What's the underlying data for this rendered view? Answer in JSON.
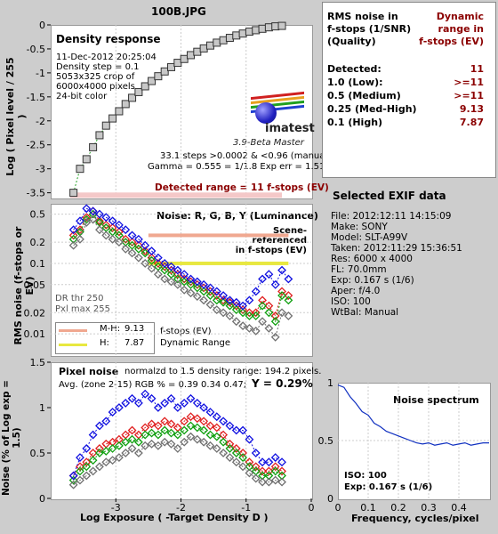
{
  "title": "100B.JPG",
  "density": {
    "heading": "Density response",
    "info": [
      "11-Dec-2012 20:25:04",
      "Density step = 0.1",
      "5053x325 crop of",
      "6000x4000 pixels",
      "24-bit color"
    ],
    "ylabel": "Log ( Pixel level / 255 )",
    "yticks": [
      "0",
      "-0.5",
      "-1",
      "-1.5",
      "-2",
      "-2.5",
      "-3",
      "-3.5"
    ],
    "logo": "imatest",
    "version": "3.9-Beta  Master",
    "stats": [
      "33.1 steps >0.0002 & <0.96 (manual)",
      "Gamma = 0.555 = 1/1.8  Exp err = 1.51 EV"
    ],
    "detected_range": "Detected range = 11 f-stops (EV)"
  },
  "noise_ev": {
    "heading": "Noise: R, G, B, Y (Luminance)",
    "ylabel": "RMS noise (f-stops or EV)",
    "yticks": [
      "0.5",
      "0.2",
      "0.1",
      "0.05",
      "0.02",
      "0.01"
    ],
    "scene_ref": [
      "Scene-referenced",
      "in f-stops (EV)"
    ],
    "dr_info": [
      "DR thr 250",
      "Pxl max 255"
    ],
    "legend": [
      {
        "label": "M-H:",
        "value": "9.13",
        "color": "#f0a890"
      },
      {
        "label": "H:",
        "value": "7.87",
        "color": "#e8e840"
      }
    ],
    "legend_text": [
      "f-stops (EV)",
      "Dynamic Range"
    ]
  },
  "pixel_noise": {
    "heading": "Pixel noise",
    "normalized": "normalzd to 1.5 density range: 194.2 pixels.",
    "avg": "Avg. (zone 2-15) RGB % = 0.39  0.34  0.47;",
    "y_value": "Y = 0.29%",
    "ylabel": "Noise (% of Log exp = 1.5)",
    "yticks": [
      "1.5",
      "1",
      "0.5",
      "0"
    ],
    "xlabel": "Log Exposure ( -Target Density D )",
    "xticks": [
      "-3",
      "-2",
      "-1",
      "0"
    ]
  },
  "rms_table": {
    "col1": [
      "RMS noise in",
      "f-stops (1/SNR)",
      "(Quality)"
    ],
    "col2": [
      "Dynamic",
      "range in",
      "f-stops (EV)"
    ],
    "rows": [
      {
        "label": "Detected:",
        "value": "11"
      },
      {
        "label": "1.0  (Low):",
        "value": ">=11"
      },
      {
        "label": "0.5  (Medium)",
        "value": ">=11"
      },
      {
        "label": "0.25 (Med-High)",
        "value": "9.13"
      },
      {
        "label": "0.1   (High)",
        "value": "7.87"
      }
    ]
  },
  "exif": {
    "heading": "Selected EXIF data",
    "lines": [
      "File:  2012:12:11 14:15:09",
      "Make:  SONY",
      "Model: SLT-A99V",
      "Taken: 2012:11:29 15:36:51",
      "Res:    6000 x 4000",
      "FL:  70.0mm",
      "Exp:   0.167 s   (1/6)",
      "Aper:  f/4.0",
      "ISO:   100",
      "WtBal: Manual"
    ]
  },
  "spectrum": {
    "heading": "Noise spectrum",
    "yticks": [
      "1",
      "0.5",
      "0"
    ],
    "xticks": [
      "0",
      "0.1",
      "0.2",
      "0.3",
      "0.4"
    ],
    "xlabel": "Frequency, cycles/pixel",
    "iso": "ISO:   100",
    "exp": "Exp:   0.167 s   (1/6)"
  },
  "colors": {
    "red": "#e02020",
    "green": "#10a010",
    "blue": "#1010e0",
    "gray": "#707070",
    "title": "#4b0082",
    "value_dark_red": "#8b0000"
  },
  "chart_data": [
    {
      "type": "line",
      "name": "Density response",
      "x": [
        -3.65,
        -3.55,
        -3.45,
        -3.35,
        -3.25,
        -3.15,
        -3.05,
        -2.95,
        -2.85,
        -2.75,
        -2.65,
        -2.55,
        -2.45,
        -2.35,
        -2.25,
        -2.15,
        -2.05,
        -1.95,
        -1.85,
        -1.75,
        -1.65,
        -1.55,
        -1.45,
        -1.35,
        -1.25,
        -1.15,
        -1.05,
        -0.95,
        -0.85,
        -0.75,
        -0.65,
        -0.55,
        -0.45
      ],
      "y": [
        -3.5,
        -3.0,
        -2.8,
        -2.55,
        -2.3,
        -2.1,
        -1.95,
        -1.8,
        -1.65,
        -1.52,
        -1.4,
        -1.28,
        -1.17,
        -1.07,
        -0.97,
        -0.88,
        -0.79,
        -0.71,
        -0.63,
        -0.56,
        -0.49,
        -0.43,
        -0.37,
        -0.32,
        -0.27,
        -0.22,
        -0.18,
        -0.14,
        -0.11,
        -0.08,
        -0.05,
        -0.03,
        -0.02
      ],
      "ylim": [
        -3.6,
        0
      ]
    },
    {
      "type": "line",
      "name": "Noise",
      "scale": "log",
      "ylim": [
        0.005,
        0.7
      ],
      "x": [
        -3.65,
        -3.55,
        -3.45,
        -3.35,
        -3.25,
        -3.15,
        -3.05,
        -2.95,
        -2.85,
        -2.75,
        -2.65,
        -2.55,
        -2.45,
        -2.35,
        -2.25,
        -2.15,
        -2.05,
        -1.95,
        -1.85,
        -1.75,
        -1.65,
        -1.55,
        -1.45,
        -1.35,
        -1.25,
        -1.15,
        -1.05,
        -0.95,
        -0.85,
        -0.75,
        -0.65,
        -0.55,
        -0.45,
        -0.35
      ],
      "series": [
        {
          "color": "red",
          "values": [
            0.25,
            0.3,
            0.45,
            0.55,
            0.4,
            0.35,
            0.32,
            0.28,
            0.22,
            0.2,
            0.18,
            0.15,
            0.12,
            0.1,
            0.09,
            0.08,
            0.07,
            0.06,
            0.055,
            0.05,
            0.045,
            0.04,
            0.035,
            0.03,
            0.028,
            0.025,
            0.022,
            0.02,
            0.02,
            0.03,
            0.025,
            0.018,
            0.04,
            0.035
          ]
        },
        {
          "color": "green",
          "values": [
            0.22,
            0.28,
            0.42,
            0.5,
            0.38,
            0.32,
            0.28,
            0.25,
            0.2,
            0.18,
            0.16,
            0.14,
            0.11,
            0.09,
            0.08,
            0.07,
            0.06,
            0.055,
            0.05,
            0.045,
            0.04,
            0.035,
            0.03,
            0.028,
            0.025,
            0.022,
            0.02,
            0.018,
            0.018,
            0.025,
            0.02,
            0.015,
            0.035,
            0.03
          ]
        },
        {
          "color": "blue",
          "values": [
            0.3,
            0.4,
            0.6,
            0.55,
            0.5,
            0.45,
            0.4,
            0.35,
            0.3,
            0.25,
            0.22,
            0.18,
            0.15,
            0.12,
            0.1,
            0.09,
            0.08,
            0.07,
            0.06,
            0.055,
            0.05,
            0.045,
            0.04,
            0.035,
            0.03,
            0.028,
            0.025,
            0.03,
            0.04,
            0.06,
            0.07,
            0.05,
            0.08,
            0.06
          ]
        },
        {
          "color": "gray",
          "values": [
            0.18,
            0.22,
            0.38,
            0.42,
            0.3,
            0.25,
            0.22,
            0.2,
            0.16,
            0.14,
            0.12,
            0.1,
            0.085,
            0.07,
            0.06,
            0.055,
            0.05,
            0.042,
            0.038,
            0.034,
            0.03,
            0.026,
            0.022,
            0.02,
            0.018,
            0.015,
            0.013,
            0.012,
            0.011,
            0.015,
            0.012,
            0.009,
            0.02,
            0.018
          ]
        }
      ]
    },
    {
      "type": "line",
      "name": "Pixel noise",
      "ylim": [
        0,
        1.5
      ],
      "x": [
        -3.65,
        -3.55,
        -3.45,
        -3.35,
        -3.25,
        -3.15,
        -3.05,
        -2.95,
        -2.85,
        -2.75,
        -2.65,
        -2.55,
        -2.45,
        -2.35,
        -2.25,
        -2.15,
        -2.05,
        -1.95,
        -1.85,
        -1.75,
        -1.65,
        -1.55,
        -1.45,
        -1.35,
        -1.25,
        -1.15,
        -1.05,
        -0.95,
        -0.85,
        -0.75,
        -0.65,
        -0.55,
        -0.45
      ],
      "series": [
        {
          "color": "red",
          "values": [
            0.25,
            0.35,
            0.4,
            0.5,
            0.55,
            0.6,
            0.62,
            0.65,
            0.7,
            0.75,
            0.7,
            0.78,
            0.82,
            0.8,
            0.85,
            0.82,
            0.78,
            0.85,
            0.9,
            0.88,
            0.85,
            0.8,
            0.78,
            0.7,
            0.6,
            0.55,
            0.5,
            0.4,
            0.35,
            0.3,
            0.3,
            0.35,
            0.3
          ]
        },
        {
          "color": "green",
          "values": [
            0.2,
            0.3,
            0.35,
            0.42,
            0.5,
            0.52,
            0.55,
            0.58,
            0.62,
            0.65,
            0.62,
            0.7,
            0.72,
            0.7,
            0.75,
            0.72,
            0.7,
            0.75,
            0.8,
            0.78,
            0.75,
            0.7,
            0.68,
            0.62,
            0.55,
            0.5,
            0.45,
            0.35,
            0.3,
            0.25,
            0.25,
            0.3,
            0.25
          ]
        },
        {
          "color": "blue",
          "values": [
            0.25,
            0.45,
            0.55,
            0.7,
            0.8,
            0.85,
            0.95,
            1.0,
            1.05,
            1.1,
            1.05,
            1.15,
            1.1,
            1.0,
            1.05,
            1.1,
            1.0,
            1.05,
            1.1,
            1.05,
            1.0,
            0.95,
            0.9,
            0.85,
            0.8,
            0.75,
            0.75,
            0.65,
            0.5,
            0.4,
            0.4,
            0.45,
            0.4
          ]
        },
        {
          "color": "gray",
          "values": [
            0.15,
            0.2,
            0.25,
            0.3,
            0.35,
            0.4,
            0.42,
            0.45,
            0.5,
            0.55,
            0.5,
            0.58,
            0.6,
            0.58,
            0.62,
            0.6,
            0.55,
            0.62,
            0.68,
            0.65,
            0.62,
            0.58,
            0.55,
            0.5,
            0.45,
            0.4,
            0.35,
            0.28,
            0.22,
            0.18,
            0.18,
            0.2,
            0.18
          ]
        }
      ]
    },
    {
      "type": "line",
      "name": "Noise spectrum",
      "ylim": [
        0,
        1
      ],
      "x": [
        0,
        0.02,
        0.04,
        0.06,
        0.08,
        0.1,
        0.12,
        0.14,
        0.16,
        0.18,
        0.2,
        0.22,
        0.24,
        0.26,
        0.28,
        0.3,
        0.32,
        0.34,
        0.36,
        0.38,
        0.4,
        0.42,
        0.44,
        0.46,
        0.48,
        0.5
      ],
      "y": [
        0.98,
        0.96,
        0.88,
        0.82,
        0.75,
        0.72,
        0.65,
        0.62,
        0.58,
        0.56,
        0.54,
        0.52,
        0.5,
        0.48,
        0.47,
        0.48,
        0.46,
        0.47,
        0.48,
        0.46,
        0.47,
        0.48,
        0.46,
        0.47,
        0.48,
        0.48
      ],
      "xlim": [
        0,
        0.5
      ]
    }
  ]
}
